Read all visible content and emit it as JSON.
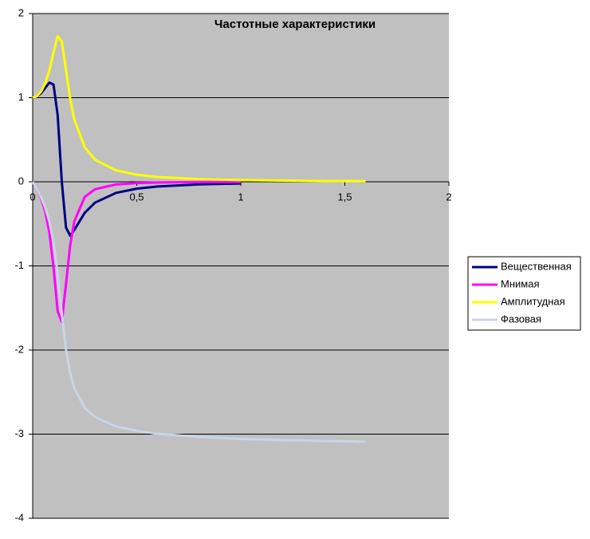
{
  "chart_data": {
    "type": "line",
    "title": "Частотные характеристики",
    "x": [
      0,
      0.02,
      0.04,
      0.06,
      0.08,
      0.1,
      0.12,
      0.14,
      0.16,
      0.18,
      0.2,
      0.25,
      0.3,
      0.4,
      0.5,
      0.6,
      0.8,
      1.0,
      1.2,
      1.4,
      1.6
    ],
    "series": [
      {
        "name": "Вещественная",
        "color": "#000080",
        "values": [
          1,
          1.013,
          1.053,
          1.115,
          1.179,
          1.156,
          0.793,
          0,
          -0.543,
          -0.64,
          -0.572,
          -0.369,
          -0.247,
          -0.132,
          -0.082,
          -0.056,
          -0.031,
          -0.02,
          null,
          null,
          null
        ]
      },
      {
        "name": "Мнимая",
        "color": "#ff00ff",
        "values": [
          0,
          -0.089,
          -0.197,
          -0.351,
          -0.6,
          -1.011,
          -1.539,
          -1.667,
          -1.216,
          -0.756,
          -0.471,
          -0.18,
          -0.088,
          -0.032,
          -0.015,
          -0.008,
          -0.003,
          -0.002,
          null,
          null,
          null
        ]
      },
      {
        "name": "Амплитудная",
        "color": "#ffff00",
        "values": [
          1,
          1.017,
          1.071,
          1.169,
          1.323,
          1.536,
          1.731,
          1.667,
          1.332,
          0.99,
          0.741,
          0.41,
          0.262,
          0.136,
          0.084,
          0.057,
          0.031,
          0.02,
          0.014,
          0.01,
          0.008
        ]
      },
      {
        "name": "Фазовая",
        "color": "#c8d6e6",
        "values": [
          0,
          -0.087,
          -0.184,
          -0.305,
          -0.471,
          -0.719,
          -1.095,
          -1.571,
          -1.992,
          -2.274,
          -2.452,
          -2.687,
          -2.798,
          -2.907,
          -2.961,
          -2.995,
          -3.033,
          -3.056,
          -3.071,
          -3.081,
          -3.089
        ]
      }
    ],
    "xlim": [
      0,
      2
    ],
    "xticks": [
      0,
      {
        "value": 0.5,
        "label": "0,5"
      },
      1,
      {
        "value": 1.5,
        "label": "1,5"
      },
      2
    ],
    "ylim": [
      -4,
      2
    ],
    "yticks": [
      2,
      1,
      0,
      -1,
      -2,
      -3,
      -4
    ],
    "grid": true
  }
}
